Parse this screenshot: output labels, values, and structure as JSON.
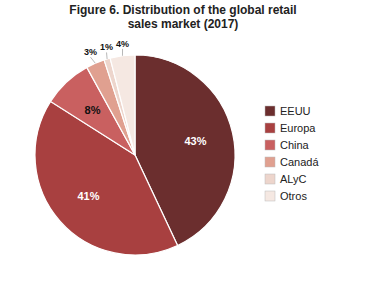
{
  "chart_data": {
    "type": "pie",
    "title": "Figure 6. Distribution of the global retail\nsales market (2017)",
    "categories": [
      "EEUU",
      "Europa",
      "China",
      "Canadá",
      "ALyC",
      "Otros"
    ],
    "values": [
      43,
      41,
      8,
      3,
      1,
      4
    ],
    "value_labels": [
      "43%",
      "41%",
      "8%",
      "3%",
      "1%",
      "4%"
    ],
    "colors": [
      "#6b2e2e",
      "#a84040",
      "#c96060",
      "#e0a090",
      "#edd5cc",
      "#f5e8e2"
    ],
    "legend": "right",
    "data_labels": true
  }
}
